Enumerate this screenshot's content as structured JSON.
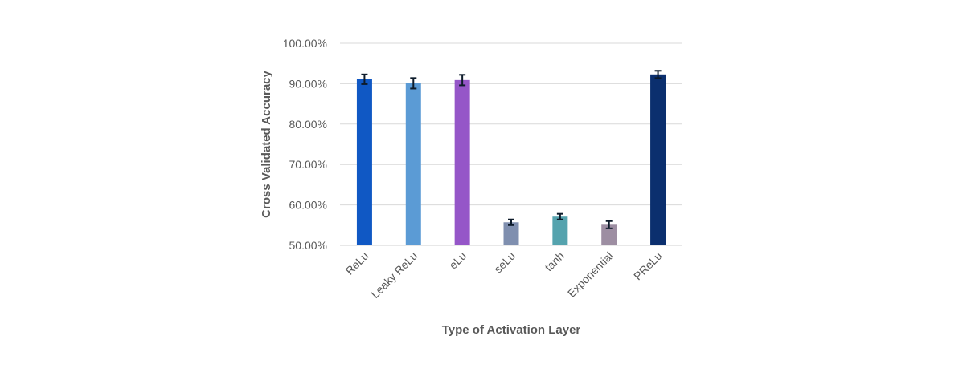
{
  "chart_data": {
    "type": "bar",
    "title": "",
    "xlabel": "Type of Activation Layer",
    "ylabel": "Cross Validated Accuracy",
    "ylim": [
      0.5,
      1.0
    ],
    "y_ticks": [
      "50.00%",
      "60.00%",
      "70.00%",
      "80.00%",
      "90.00%",
      "100.00%"
    ],
    "y_tick_values": [
      0.5,
      0.6,
      0.7,
      0.8,
      0.9,
      1.0
    ],
    "grid": true,
    "legend": "none",
    "categories": [
      "ReLu",
      "Leaky ReLu",
      "eLu",
      "seLu",
      "tanh",
      "Exponential",
      "PReLu"
    ],
    "values": [
      0.911,
      0.901,
      0.909,
      0.557,
      0.571,
      0.551,
      0.923
    ],
    "errors": [
      0.012,
      0.013,
      0.013,
      0.007,
      0.007,
      0.009,
      0.009
    ],
    "colors": [
      "#1058C4",
      "#5B9BD5",
      "#9556C8",
      "#7F8FAF",
      "#55A3AE",
      "#9D8EA2",
      "#0B2F6E"
    ]
  }
}
